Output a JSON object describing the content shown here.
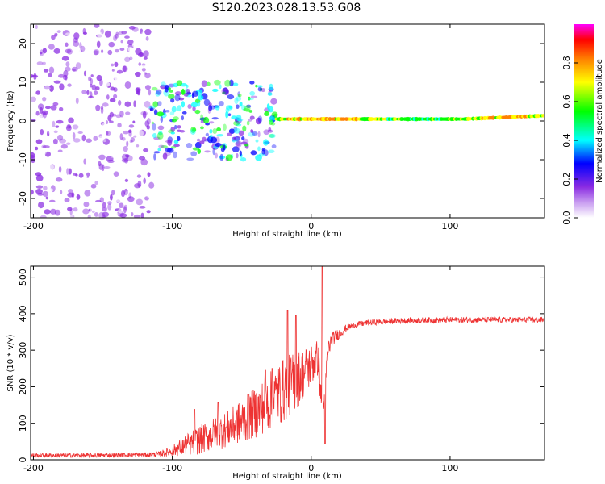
{
  "figure_title": "S120.2023.028.13.53.G08",
  "chart_data": [
    {
      "type": "heatmap",
      "title": "",
      "xlabel": "Height of straight line (km)",
      "ylabel": "Frequency (Hz)",
      "xlim": [
        -202,
        168
      ],
      "ylim": [
        -25,
        25
      ],
      "xticks": [
        -200,
        -100,
        0,
        100
      ],
      "yticks": [
        -20,
        -10,
        0,
        10,
        20
      ],
      "colorbar": {
        "label": "Normalized spectral amplitude",
        "range": [
          0.0,
          1.0
        ],
        "ticks": [
          0.0,
          0.2,
          0.4,
          0.6,
          0.8
        ],
        "tick_labels": [
          "0.0",
          "0.2",
          "0.4",
          "0.6",
          "0.8"
        ],
        "colormap": [
          "#ffffff",
          "#8a2be2",
          "#0000ff",
          "#00ffff",
          "#00ff00",
          "#ffff00",
          "#ff8000",
          "#ff0000",
          "#ff00ff"
        ]
      },
      "regions": [
        {
          "description": "diffuse noise",
          "x_range": [
            -202,
            -115
          ],
          "freq_range": [
            -25,
            25
          ],
          "level": 0.1
        },
        {
          "description": "scattered signal",
          "x_range": [
            -115,
            -25
          ],
          "freq_range": [
            -10,
            10
          ],
          "level": 0.3
        },
        {
          "description": "stable carrier line",
          "x_range": [
            -25,
            168
          ],
          "freq_center": 0.5,
          "level": 0.8
        }
      ]
    },
    {
      "type": "line",
      "title": "",
      "xlabel": "Height of straight line (km)",
      "ylabel": "SNR (10 * v/v)",
      "xlim": [
        -202,
        168
      ],
      "ylim": [
        0,
        530
      ],
      "xticks": [
        -200,
        -100,
        0,
        100
      ],
      "yticks": [
        0,
        100,
        200,
        300,
        400,
        500
      ],
      "series": [
        {
          "name": "SNR",
          "color": "#ee3333",
          "x": [
            -202,
            -180,
            -160,
            -140,
            -120,
            -110,
            -100,
            -90,
            -80,
            -70,
            -60,
            -50,
            -40,
            -30,
            -20,
            -10,
            -5,
            0,
            5,
            8,
            10,
            12,
            15,
            20,
            25,
            30,
            40,
            60,
            80,
            100,
            120,
            140,
            168
          ],
          "y": [
            12,
            12,
            12,
            13,
            14,
            15,
            25,
            40,
            55,
            70,
            85,
            105,
            130,
            160,
            190,
            220,
            240,
            260,
            280,
            120,
            200,
            300,
            330,
            345,
            360,
            368,
            375,
            380,
            382,
            383,
            383,
            383,
            383
          ],
          "noise": [
            6,
            6,
            6,
            6,
            6,
            7,
            15,
            30,
            40,
            45,
            50,
            60,
            70,
            80,
            90,
            80,
            70,
            60,
            50,
            30,
            40,
            30,
            20,
            15,
            10,
            8,
            8,
            8,
            8,
            8,
            8,
            8,
            8
          ],
          "spikes": [
            {
              "x": -84,
              "y": 138
            },
            {
              "x": -67,
              "y": 158
            },
            {
              "x": -45,
              "y": 180
            },
            {
              "x": -33,
              "y": 245
            },
            {
              "x": -28,
              "y": 250
            },
            {
              "x": -17,
              "y": 410
            },
            {
              "x": -11,
              "y": 395
            },
            {
              "x": 8,
              "y": 530
            },
            {
              "x": 10,
              "y": 45
            }
          ]
        }
      ]
    }
  ]
}
